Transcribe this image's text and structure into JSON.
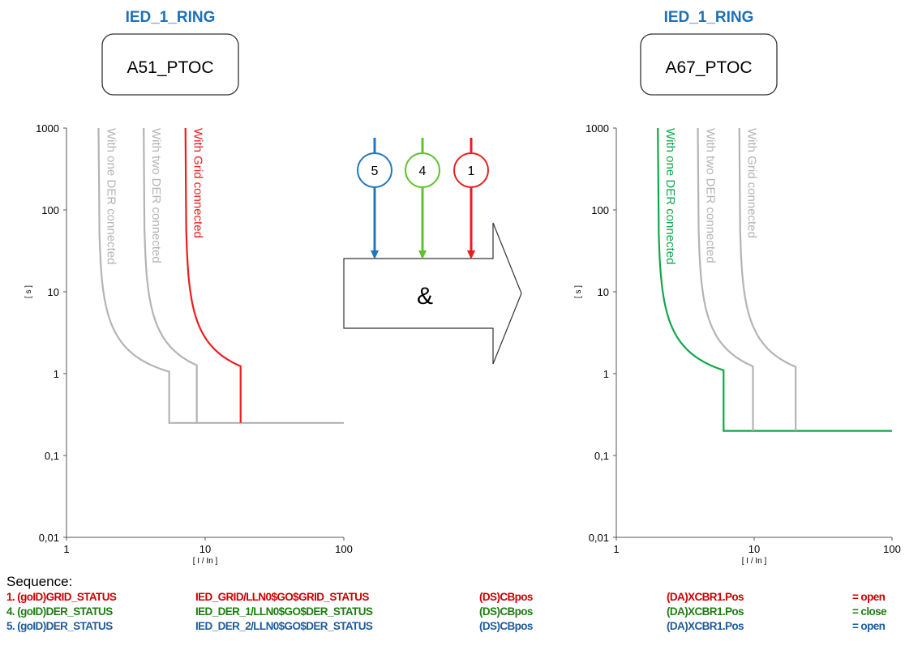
{
  "left_panel": {
    "ied_title": "IED_1_RING",
    "function_label": "A51_PTOC",
    "ylabel": "[ s ]",
    "xlabel": "[ I / In ]",
    "curves": [
      {
        "label": "With one DER connected",
        "color": "#b4b4b4",
        "pickup": 1.7,
        "fast": 5.5,
        "t_fast": 0.25
      },
      {
        "label": "With two DER connected",
        "color": "#b4b4b4",
        "pickup": 3.6,
        "fast": 8.7,
        "t_fast": 0.25
      },
      {
        "label": "With Grid connected",
        "color": "#ee1c1c",
        "pickup": 7.2,
        "fast": 18,
        "t_fast": 0.25
      }
    ]
  },
  "right_panel": {
    "ied_title": "IED_1_RING",
    "function_label": "A67_PTOC",
    "ylabel": "[ s ]",
    "xlabel": "[ I / In ]",
    "curves": [
      {
        "label": "With one DER connected",
        "color": "#0fa84a",
        "pickup": 2.0,
        "fast": 6.0,
        "t_fast": 0.2
      },
      {
        "label": "With two DER connected",
        "color": "#b4b4b4",
        "pickup": 3.9,
        "fast": 9.8,
        "t_fast": 0.2
      },
      {
        "label": "With Grid connected",
        "color": "#b4b4b4",
        "pickup": 7.8,
        "fast": 20,
        "t_fast": 0.2
      }
    ]
  },
  "axis": {
    "y_ticks": [
      "1000",
      "100",
      "10",
      "1",
      "0,1",
      "0,01"
    ],
    "x_ticks": [
      "1",
      "10",
      "100"
    ]
  },
  "gate": {
    "label": "&",
    "inputs": [
      {
        "number": "5",
        "color": "#1f77c4"
      },
      {
        "number": "4",
        "color": "#5ec32b"
      },
      {
        "number": "1",
        "color": "#ee1c1c"
      }
    ]
  },
  "sequence": {
    "title": "Sequence:",
    "rows": [
      {
        "id": "1. (goID)GRID_STATUS",
        "ref": "IED_GRID/LLN0$GO$GRID_STATUS",
        "ds": "(DS)CBpos",
        "da": "(DA)XCBR1.Pos",
        "val": "= open",
        "color": "#cc0000"
      },
      {
        "id": "4. (goID)DER_STATUS",
        "ref": "IED_DER_1/LLN0$GO$DER_STATUS",
        "ds": "(DS)CBpos",
        "da": "(DA)XCBR1.Pos",
        "val": "= close",
        "color": "#1e7d12"
      },
      {
        "id": "5. (goID)DER_STATUS",
        "ref": "IED_DER_2/LLN0$GO$DER_STATUS",
        "ds": "(DS)CBpos",
        "da": "(DA)XCBR1.Pos",
        "val": "= open",
        "color": "#1c5c9c"
      }
    ]
  }
}
